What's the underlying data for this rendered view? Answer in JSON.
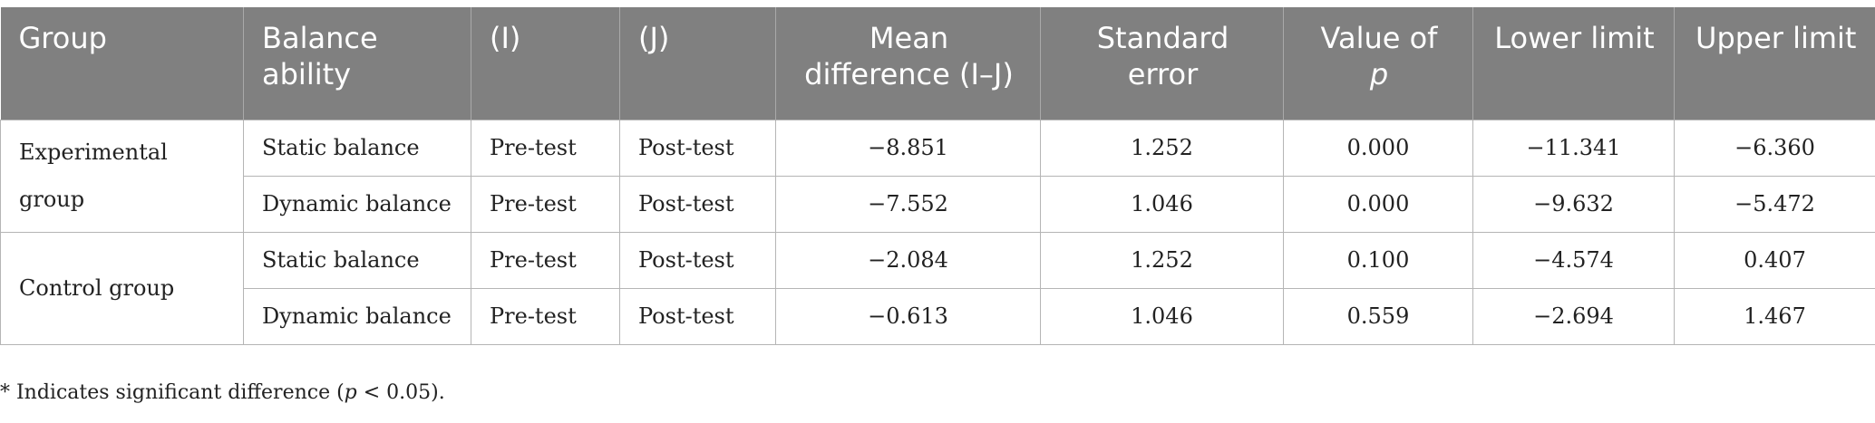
{
  "table": {
    "headers": {
      "group": "Group",
      "balance_ability": "Balance ability",
      "i": "(I)",
      "j": "(J)",
      "mean_difference": "Mean difference (I–J)",
      "standard_error": "Standard error",
      "value_of": "Value of",
      "p": "p",
      "lower_limit": "Lower limit",
      "upper_limit": "Upper limit"
    },
    "groups": [
      {
        "name": "Experimental group",
        "rows": [
          {
            "balance": "Static balance",
            "i": "Pre-test",
            "j": "Post-test",
            "mean_diff": "−8.851",
            "se": "1.252",
            "p": "0.000",
            "lower": "−11.341",
            "upper": "−6.360"
          },
          {
            "balance": "Dynamic balance",
            "i": "Pre-test",
            "j": "Post-test",
            "mean_diff": "−7.552",
            "se": "1.046",
            "p": "0.000",
            "lower": "−9.632",
            "upper": "−5.472"
          }
        ]
      },
      {
        "name": "Control group",
        "rows": [
          {
            "balance": "Static balance",
            "i": "Pre-test",
            "j": "Post-test",
            "mean_diff": "−2.084",
            "se": "1.252",
            "p": "0.100",
            "lower": "−4.574",
            "upper": "0.407"
          },
          {
            "balance": "Dynamic balance",
            "i": "Pre-test",
            "j": "Post-test",
            "mean_diff": "−0.613",
            "se": "1.046",
            "p": "0.559",
            "lower": "−2.694",
            "upper": "1.467"
          }
        ]
      }
    ]
  },
  "footnote": {
    "prefix": "* Indicates significant difference (",
    "p": "p",
    "suffix": " < 0.05)."
  }
}
